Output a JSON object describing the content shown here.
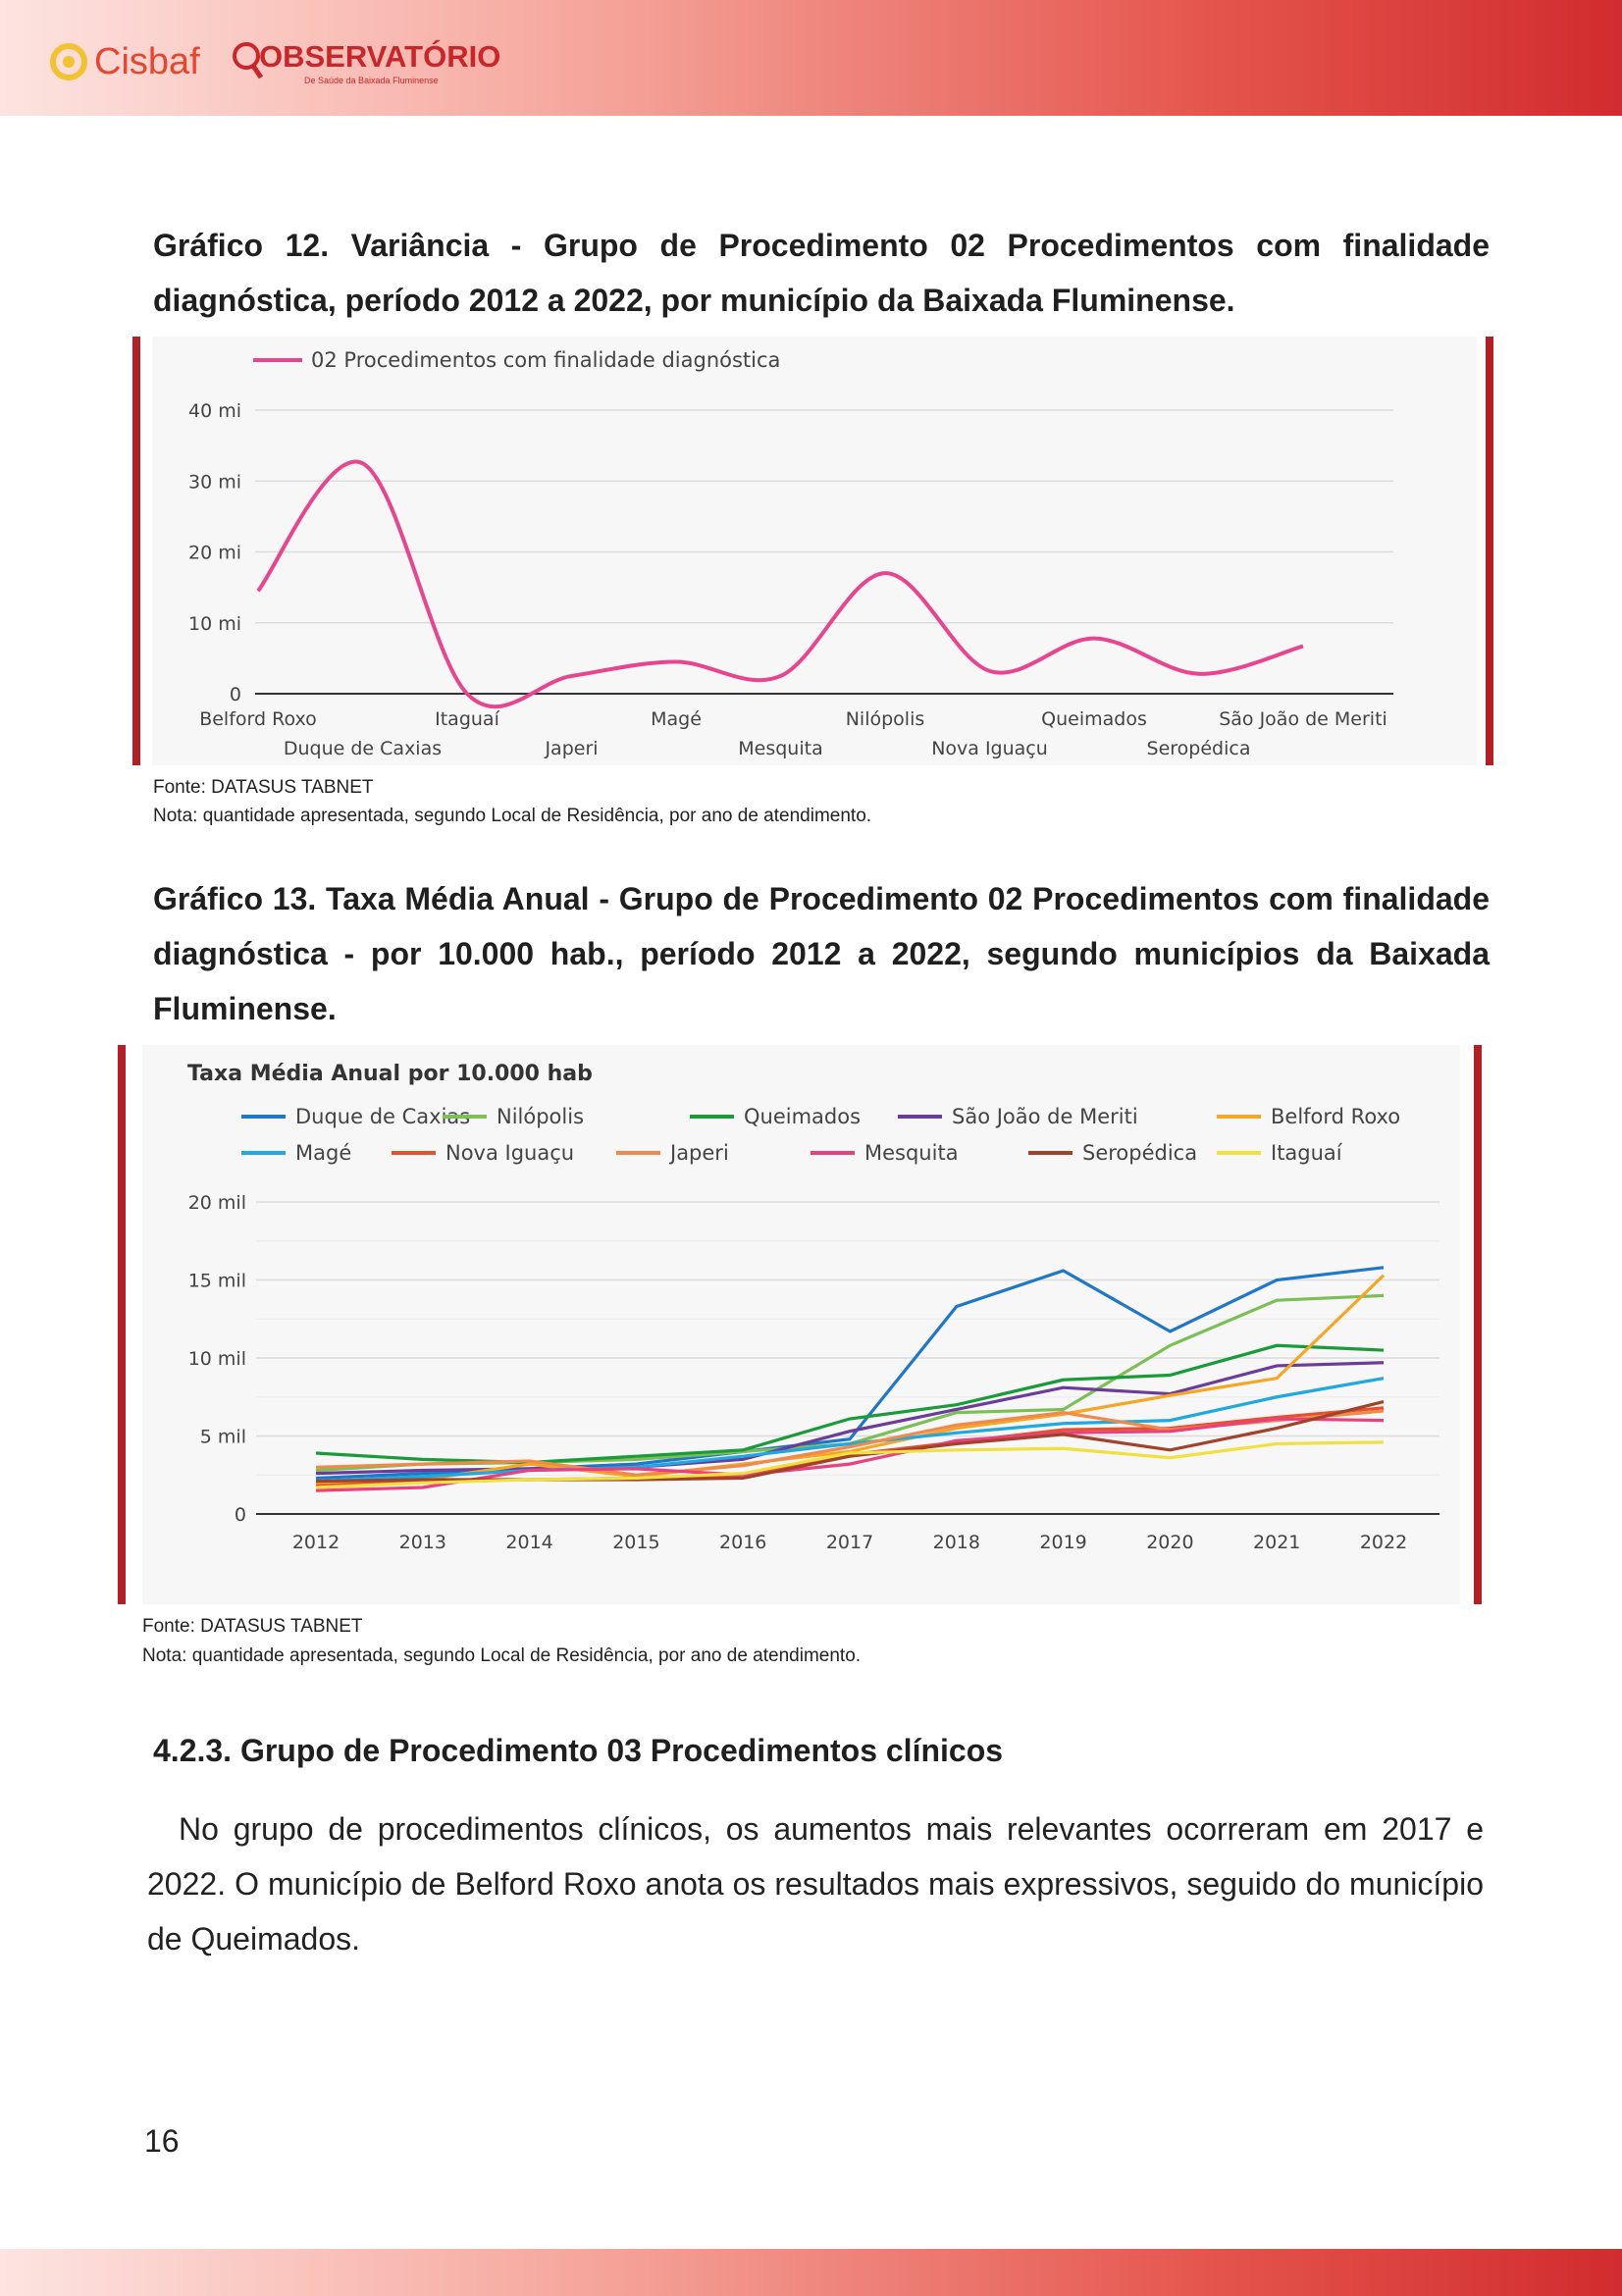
{
  "header": {
    "logo_cisbaf": "Cisbaf",
    "logo_observatorio": "OBSERVATÓRIO",
    "logo_observatorio_sub": "De Saúde da Baixada Fluminense"
  },
  "chart12": {
    "caption": "Gráfico 12. Variância - Grupo de Procedimento 02 Procedimentos com finalidade diagnóstica, período 2012 a 2022, por município da Baixada Fluminense.",
    "source": "Fonte: DATASUS TABNET",
    "note": "Nota: quantidade apresentada, segundo Local de Residência, por ano de atendimento."
  },
  "chart13": {
    "caption": "Gráfico 13. Taxa Média Anual - Grupo de Procedimento 02 Procedimentos com finalidade diagnóstica - por 10.000 hab., período 2012 a 2022, segundo municípios da Baixada Fluminense.",
    "source": "Fonte: DATASUS TABNET",
    "note": "Nota: quantidade apresentada, segundo Local de Residência, por ano de atendimento."
  },
  "section": {
    "heading": "4.2.3. Grupo de Procedimento 03 Procedimentos clínicos",
    "paragraph": "No grupo de procedimentos clínicos, os aumentos mais relevantes ocorreram em 2017 e 2022. O município de Belford Roxo anota os resultados mais expressivos, seguido do município de Queimados."
  },
  "page_number": "16",
  "colors": {
    "accent_red": "#b31f24",
    "band_light": "#fde4e1",
    "band_dark": "#d12c2f"
  },
  "chart_data": [
    {
      "type": "line",
      "title": "",
      "categories": [
        "Belford Roxo",
        "Duque de Caxias",
        "Itaguaí",
        "Japeri",
        "Magé",
        "Mesquita",
        "Nilópolis",
        "Nova Iguaçu",
        "Queimados",
        "Seropédica",
        "São João de Meriti"
      ],
      "series": [
        {
          "name": "02 Procedimentos com finalidade diagnóstica",
          "color": "#e8458f",
          "values": [
            14500,
            32500,
            0,
            2500,
            4500,
            2500,
            17000,
            3200,
            7800,
            2800,
            6700
          ]
        }
      ],
      "y_ticks": [
        "0",
        "10 mi",
        "20 mi",
        "30 mi",
        "40 mi"
      ],
      "ylim": [
        0,
        40000
      ],
      "grid": true,
      "legend": "top-left"
    },
    {
      "type": "line",
      "title": "Taxa Média Anual por 10.000 hab",
      "categories": [
        "2012",
        "2013",
        "2014",
        "2015",
        "2016",
        "2017",
        "2018",
        "2019",
        "2020",
        "2021",
        "2022"
      ],
      "y_ticks": [
        "0",
        "5 mil",
        "10 mil",
        "15 mil",
        "20 mil"
      ],
      "ylim": [
        0,
        20000
      ],
      "grid": true,
      "legend": "top",
      "series": [
        {
          "name": "Duque de Caxias",
          "color": "#1f77c8",
          "values": [
            2300,
            2600,
            2900,
            3200,
            4000,
            4800,
            13300,
            15600,
            11700,
            15000,
            15800
          ]
        },
        {
          "name": "Nilópolis",
          "color": "#7cbf54",
          "values": [
            2800,
            3200,
            3300,
            3500,
            4000,
            4500,
            6500,
            6700,
            10800,
            13700,
            14000
          ]
        },
        {
          "name": "Queimados",
          "color": "#1a9b3a",
          "values": [
            3900,
            3500,
            3300,
            3700,
            4100,
            6100,
            7000,
            8600,
            8900,
            10800,
            10500
          ]
        },
        {
          "name": "São João de Meriti",
          "color": "#6a3d9a",
          "values": [
            2600,
            2800,
            2900,
            3000,
            3500,
            5300,
            6700,
            8100,
            7700,
            9500,
            9700
          ]
        },
        {
          "name": "Belford Roxo",
          "color": "#f5a623",
          "values": [
            2000,
            2200,
            3200,
            2400,
            3200,
            4000,
            5500,
            6400,
            7600,
            8700,
            15300
          ]
        },
        {
          "name": "Magé",
          "color": "#20a8e0",
          "values": [
            2100,
            2400,
            2800,
            3000,
            3700,
            4500,
            5200,
            5800,
            6000,
            7500,
            8700
          ]
        },
        {
          "name": "Nova Iguaçu",
          "color": "#e4512b",
          "values": [
            1800,
            2100,
            2200,
            2300,
            2500,
            3800,
            4600,
            5400,
            5500,
            6200,
            6800
          ]
        },
        {
          "name": "Japeri",
          "color": "#f08a4b",
          "values": [
            3000,
            3200,
            3400,
            2500,
            3100,
            4300,
            5700,
            6500,
            5400,
            6000,
            6600
          ]
        },
        {
          "name": "Mesquita",
          "color": "#e8417f",
          "values": [
            1500,
            1700,
            2800,
            2900,
            2500,
            3200,
            4700,
            5200,
            5300,
            6100,
            6000
          ]
        },
        {
          "name": "Seropédica",
          "color": "#a0432a",
          "values": [
            2100,
            2200,
            2200,
            2200,
            2300,
            3700,
            4500,
            5100,
            4100,
            5500,
            7200
          ]
        },
        {
          "name": "Itaguaí",
          "color": "#f0e040",
          "values": [
            1700,
            2000,
            2200,
            2300,
            2600,
            3900,
            4100,
            4200,
            3600,
            4500,
            4600
          ]
        }
      ]
    }
  ]
}
